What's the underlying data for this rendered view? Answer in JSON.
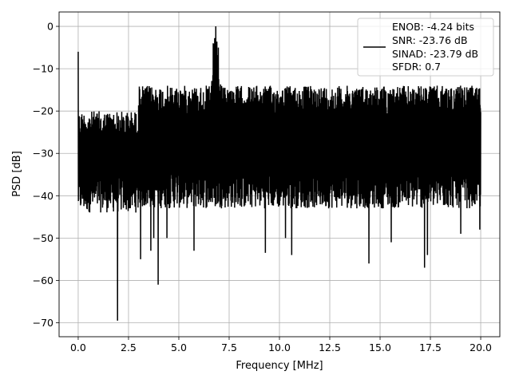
{
  "chart_data": {
    "type": "line",
    "title": "",
    "xlabel": "Frequency [MHz]",
    "ylabel": "PSD [dB]",
    "xlim": [
      -0.95,
      20.95
    ],
    "ylim": [
      -73.3,
      3.4
    ],
    "xticks": [
      0.0,
      2.5,
      5.0,
      7.5,
      10.0,
      12.5,
      15.0,
      17.5,
      20.0
    ],
    "xtick_labels": [
      "0.0",
      "2.5",
      "5.0",
      "7.5",
      "10.0",
      "12.5",
      "15.0",
      "17.5",
      "20.0"
    ],
    "yticks": [
      0,
      -10,
      -20,
      -30,
      -40,
      -50,
      -60,
      -70
    ],
    "ytick_labels": [
      "0",
      "−10",
      "−20",
      "−30",
      "−40",
      "−50",
      "−60",
      "−70"
    ],
    "grid": true,
    "legend_position": "top-right",
    "line_color": "#000000",
    "legend": [
      "ENOB: -4.24 bits",
      "SNR: -23.76 dB",
      "SINAD: -23.79 dB",
      "SFDR: 0.7"
    ],
    "series": [
      {
        "x_range": [
          0.0,
          20.0
        ],
        "noise_band": {
          "upper": -14,
          "lower": -40,
          "upper_below_3MHz": -20,
          "lower_below_3MHz": -41
        },
        "peaks": [
          {
            "x": 0.0,
            "y": -6
          },
          {
            "x": 6.83,
            "y": 0.0
          },
          {
            "x": 6.7,
            "y": -4
          },
          {
            "x": 6.95,
            "y": -5
          }
        ],
        "dips": [
          {
            "x": 1.95,
            "y": -69.5
          },
          {
            "x": 3.97,
            "y": -61
          },
          {
            "x": 3.6,
            "y": -53
          },
          {
            "x": 3.75,
            "y": -50
          },
          {
            "x": 4.4,
            "y": -50
          },
          {
            "x": 3.1,
            "y": -55
          },
          {
            "x": 5.75,
            "y": -53
          },
          {
            "x": 9.3,
            "y": -53.5
          },
          {
            "x": 10.6,
            "y": -54
          },
          {
            "x": 10.3,
            "y": -50
          },
          {
            "x": 14.45,
            "y": -56
          },
          {
            "x": 15.55,
            "y": -51
          },
          {
            "x": 17.2,
            "y": -57
          },
          {
            "x": 17.35,
            "y": -54
          },
          {
            "x": 19.0,
            "y": -49
          },
          {
            "x": 19.95,
            "y": -48
          }
        ]
      }
    ]
  }
}
